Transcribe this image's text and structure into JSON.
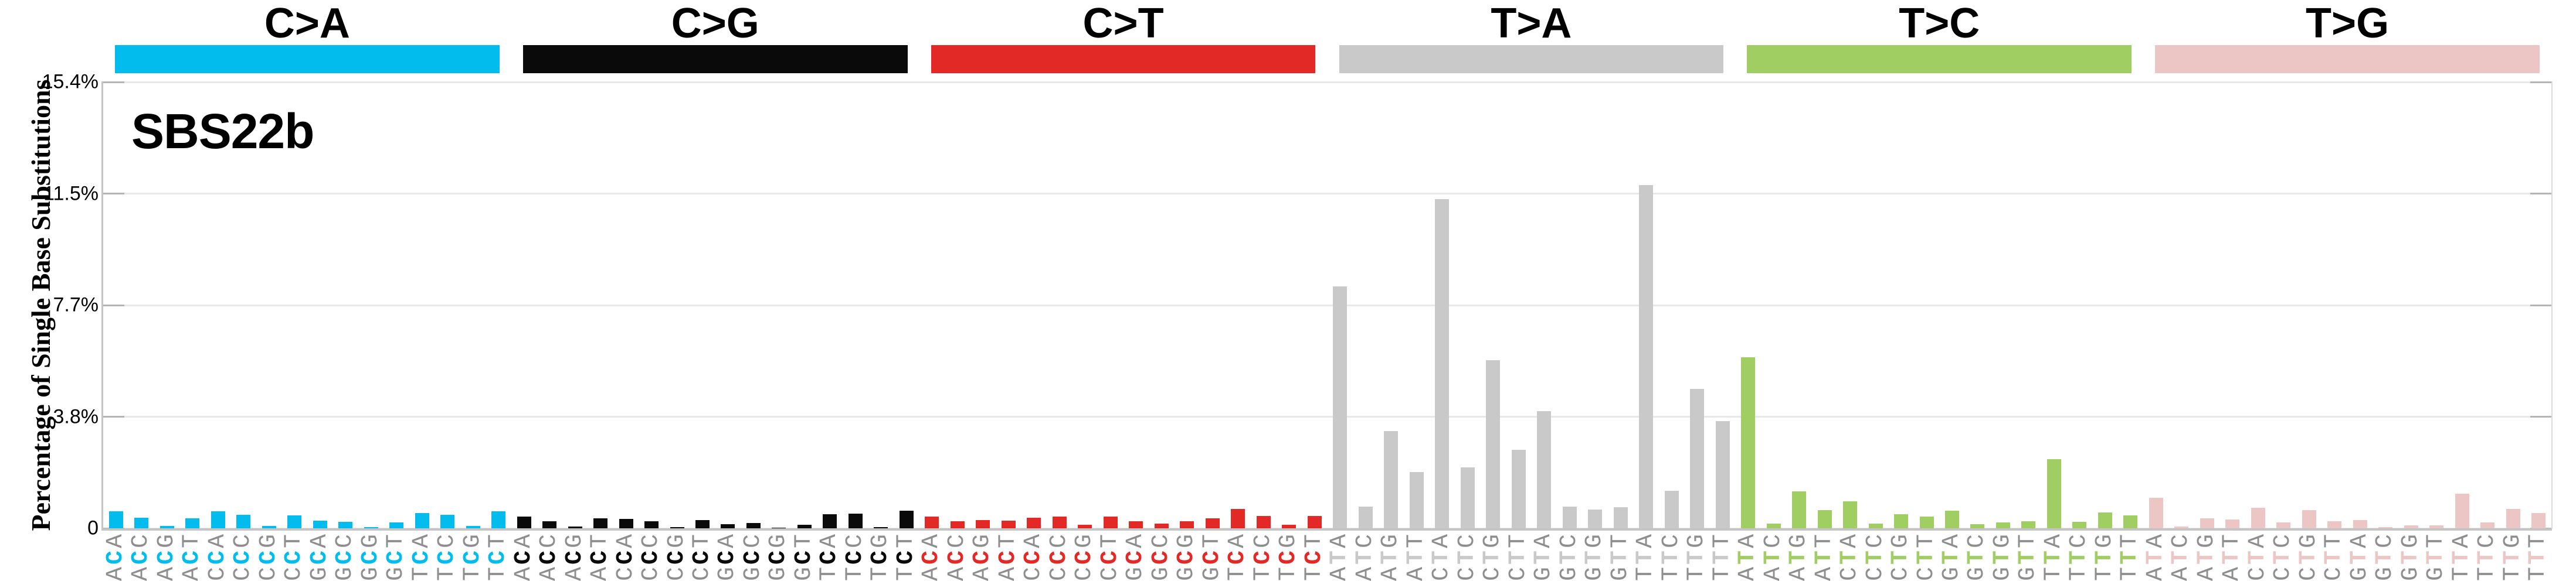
{
  "chart_data": {
    "type": "bar",
    "title": "SBS22b",
    "ylabel": "Percentage of Single Base Substitutions",
    "ylim": [
      0,
      15.4
    ],
    "yticks": [
      {
        "value": 0,
        "label": "0"
      },
      {
        "value": 3.85,
        "label": "3.8%"
      },
      {
        "value": 7.7,
        "label": "7.7%"
      },
      {
        "value": 11.55,
        "label": "11.5%"
      },
      {
        "value": 15.4,
        "label": "15.4%"
      }
    ],
    "grid": "horizontal",
    "legend_position": "top-category-bands",
    "label_color_flanking": "#8e8e8e",
    "series": [
      {
        "name": "C>A",
        "color": "#03BCEE",
        "categories": [
          "ACA",
          "ACC",
          "ACG",
          "ACT",
          "CCA",
          "CCC",
          "CCG",
          "CCT",
          "GCA",
          "GCC",
          "GCG",
          "GCT",
          "TCA",
          "TCC",
          "TCG",
          "TCT"
        ],
        "values": [
          0.59,
          0.37,
          0.08,
          0.35,
          0.59,
          0.47,
          0.08,
          0.44,
          0.26,
          0.23,
          0.04,
          0.21,
          0.52,
          0.47,
          0.08,
          0.59
        ]
      },
      {
        "name": "C>G",
        "color": "#0A0A0A",
        "categories": [
          "ACA",
          "ACC",
          "ACG",
          "ACT",
          "CCA",
          "CCC",
          "CCG",
          "CCT",
          "GCA",
          "GCC",
          "GCG",
          "GCT",
          "TCA",
          "TCC",
          "TCG",
          "TCT"
        ],
        "values": [
          0.4,
          0.25,
          0.06,
          0.35,
          0.32,
          0.25,
          0.04,
          0.29,
          0.14,
          0.19,
          0.02,
          0.12,
          0.49,
          0.51,
          0.05,
          0.61
        ]
      },
      {
        "name": "C>T",
        "color": "#E32926",
        "categories": [
          "ACA",
          "ACC",
          "ACG",
          "ACT",
          "CCA",
          "CCC",
          "CCG",
          "CCT",
          "GCA",
          "GCC",
          "GCG",
          "GCT",
          "TCA",
          "TCC",
          "TCG",
          "TCT"
        ],
        "values": [
          0.4,
          0.24,
          0.28,
          0.26,
          0.36,
          0.41,
          0.13,
          0.41,
          0.25,
          0.16,
          0.25,
          0.34,
          0.67,
          0.42,
          0.12,
          0.42
        ]
      },
      {
        "name": "T>A",
        "color": "#CAC9C9",
        "categories": [
          "ATA",
          "ATC",
          "ATG",
          "ATT",
          "CTA",
          "CTC",
          "CTG",
          "CTT",
          "GTA",
          "GTC",
          "GTG",
          "GTT",
          "TTA",
          "TTC",
          "TTG",
          "TTT"
        ],
        "values": [
          8.35,
          0.75,
          3.35,
          1.95,
          11.35,
          2.1,
          5.8,
          2.7,
          4.05,
          0.75,
          0.65,
          0.72,
          11.85,
          1.3,
          4.8,
          3.7
        ]
      },
      {
        "name": "T>C",
        "color": "#A1CE63",
        "categories": [
          "ATA",
          "ATC",
          "ATG",
          "ATT",
          "CTA",
          "CTC",
          "CTG",
          "CTT",
          "GTA",
          "GTC",
          "GTG",
          "GTT",
          "TTA",
          "TTC",
          "TTG",
          "TTT"
        ],
        "values": [
          5.9,
          0.17,
          1.28,
          0.62,
          0.92,
          0.17,
          0.48,
          0.41,
          0.6,
          0.14,
          0.2,
          0.25,
          2.38,
          0.22,
          0.55,
          0.45
        ]
      },
      {
        "name": "T>G",
        "color": "#EBC6C4",
        "categories": [
          "ATA",
          "ATC",
          "ATG",
          "ATT",
          "CTA",
          "CTC",
          "CTG",
          "CTT",
          "GTA",
          "GTC",
          "GTG",
          "GTT",
          "TTA",
          "TTC",
          "TTG",
          "TTT"
        ],
        "values": [
          1.05,
          0.06,
          0.34,
          0.31,
          0.7,
          0.21,
          0.62,
          0.25,
          0.28,
          0.04,
          0.11,
          0.11,
          1.19,
          0.21,
          0.66,
          0.52
        ]
      }
    ]
  }
}
